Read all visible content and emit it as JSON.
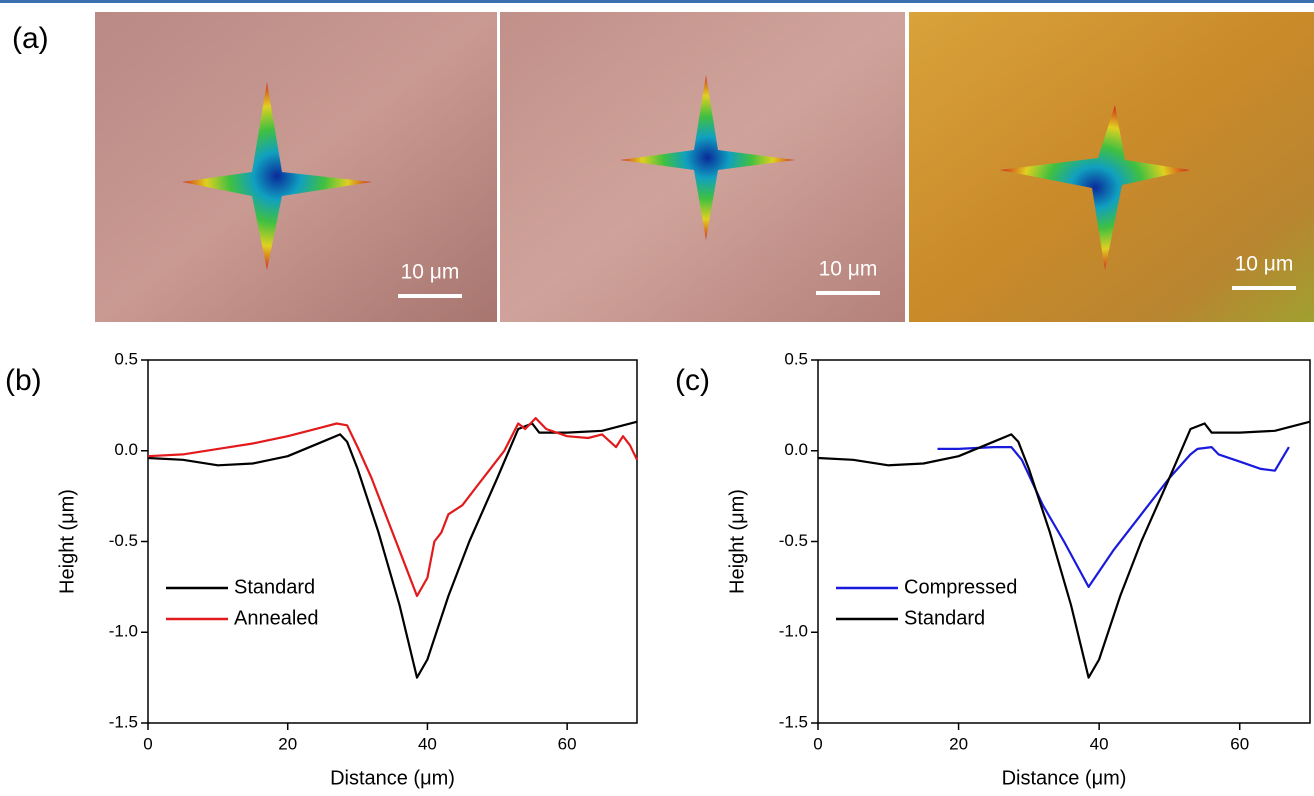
{
  "panel_a": {
    "label": "(a)",
    "scale_bars": [
      "10 μm",
      "10 μm",
      "10 μm"
    ]
  },
  "chart_data": [
    {
      "type": "line",
      "panel_label": "(b)",
      "x_label": "Distance (μm)",
      "y_label": "Height (μm)",
      "xlim": [
        0,
        70
      ],
      "ylim": [
        -1.5,
        0.5
      ],
      "xticks": [
        0,
        20,
        40,
        60
      ],
      "yticks": [
        0.5,
        {
          "value": 0,
          "label": "0.0"
        },
        -0.5,
        {
          "value": -1,
          "label": "-1.0"
        },
        -1.5
      ],
      "legend": "lower left",
      "series": [
        {
          "name": "Standard",
          "color": "#000000",
          "x": [
            0,
            5,
            10,
            15,
            20,
            25,
            27.5,
            28.5,
            30,
            33,
            36,
            38.5,
            40,
            43,
            46,
            50,
            53,
            55,
            56,
            60,
            65,
            70
          ],
          "values": [
            -0.04,
            -0.05,
            -0.08,
            -0.07,
            -0.03,
            0.05,
            0.09,
            0.05,
            -0.1,
            -0.45,
            -0.85,
            -1.25,
            -1.15,
            -0.8,
            -0.5,
            -0.15,
            0.12,
            0.15,
            0.1,
            0.1,
            0.11,
            0.16
          ]
        },
        {
          "name": "Annealed",
          "color": "#e31a1c",
          "x": [
            0,
            5,
            10,
            15,
            20,
            25,
            27,
            28.5,
            30,
            32,
            35,
            37,
            38.5,
            40,
            41,
            42,
            43,
            45,
            47,
            49,
            51,
            53,
            54,
            55.5,
            57,
            60,
            63,
            65,
            67,
            68,
            69,
            70
          ],
          "values": [
            -0.03,
            -0.02,
            0.01,
            0.04,
            0.08,
            0.13,
            0.15,
            0.14,
            0.02,
            -0.15,
            -0.45,
            -0.65,
            -0.8,
            -0.7,
            -0.5,
            -0.45,
            -0.35,
            -0.3,
            -0.2,
            -0.1,
            0.0,
            0.15,
            0.12,
            0.18,
            0.12,
            0.08,
            0.07,
            0.09,
            0.02,
            0.08,
            0.03,
            -0.05
          ]
        }
      ]
    },
    {
      "type": "line",
      "panel_label": "(c)",
      "x_label": "Distance (μm)",
      "y_label": "Height (μm)",
      "xlim": [
        0,
        70
      ],
      "ylim": [
        -1.5,
        0.5
      ],
      "xticks": [
        0,
        20,
        40,
        60
      ],
      "yticks": [
        0.5,
        {
          "value": 0,
          "label": "0.0"
        },
        -0.5,
        {
          "value": -1,
          "label": "-1.0"
        },
        -1.5
      ],
      "legend": "lower left",
      "series": [
        {
          "name": "Compressed",
          "color": "#1a1adc",
          "x": [
            17,
            20,
            25,
            27.5,
            29,
            32,
            35,
            38.5,
            42,
            46,
            50,
            53,
            54,
            56,
            57,
            60,
            63,
            65,
            67
          ],
          "values": [
            0.01,
            0.01,
            0.02,
            0.02,
            -0.05,
            -0.3,
            -0.5,
            -0.75,
            -0.55,
            -0.35,
            -0.15,
            -0.02,
            0.01,
            0.02,
            -0.02,
            -0.06,
            -0.1,
            -0.11,
            0.02
          ]
        },
        {
          "name": "Standard",
          "color": "#000000",
          "x": [
            0,
            5,
            10,
            15,
            20,
            25,
            27.5,
            28.5,
            30,
            33,
            36,
            38.5,
            40,
            43,
            46,
            50,
            53,
            55,
            56,
            60,
            65,
            70
          ],
          "values": [
            -0.04,
            -0.05,
            -0.08,
            -0.07,
            -0.03,
            0.05,
            0.09,
            0.05,
            -0.1,
            -0.45,
            -0.85,
            -1.25,
            -1.15,
            -0.8,
            -0.5,
            -0.15,
            0.12,
            0.15,
            0.1,
            0.1,
            0.11,
            0.16
          ]
        }
      ]
    }
  ]
}
